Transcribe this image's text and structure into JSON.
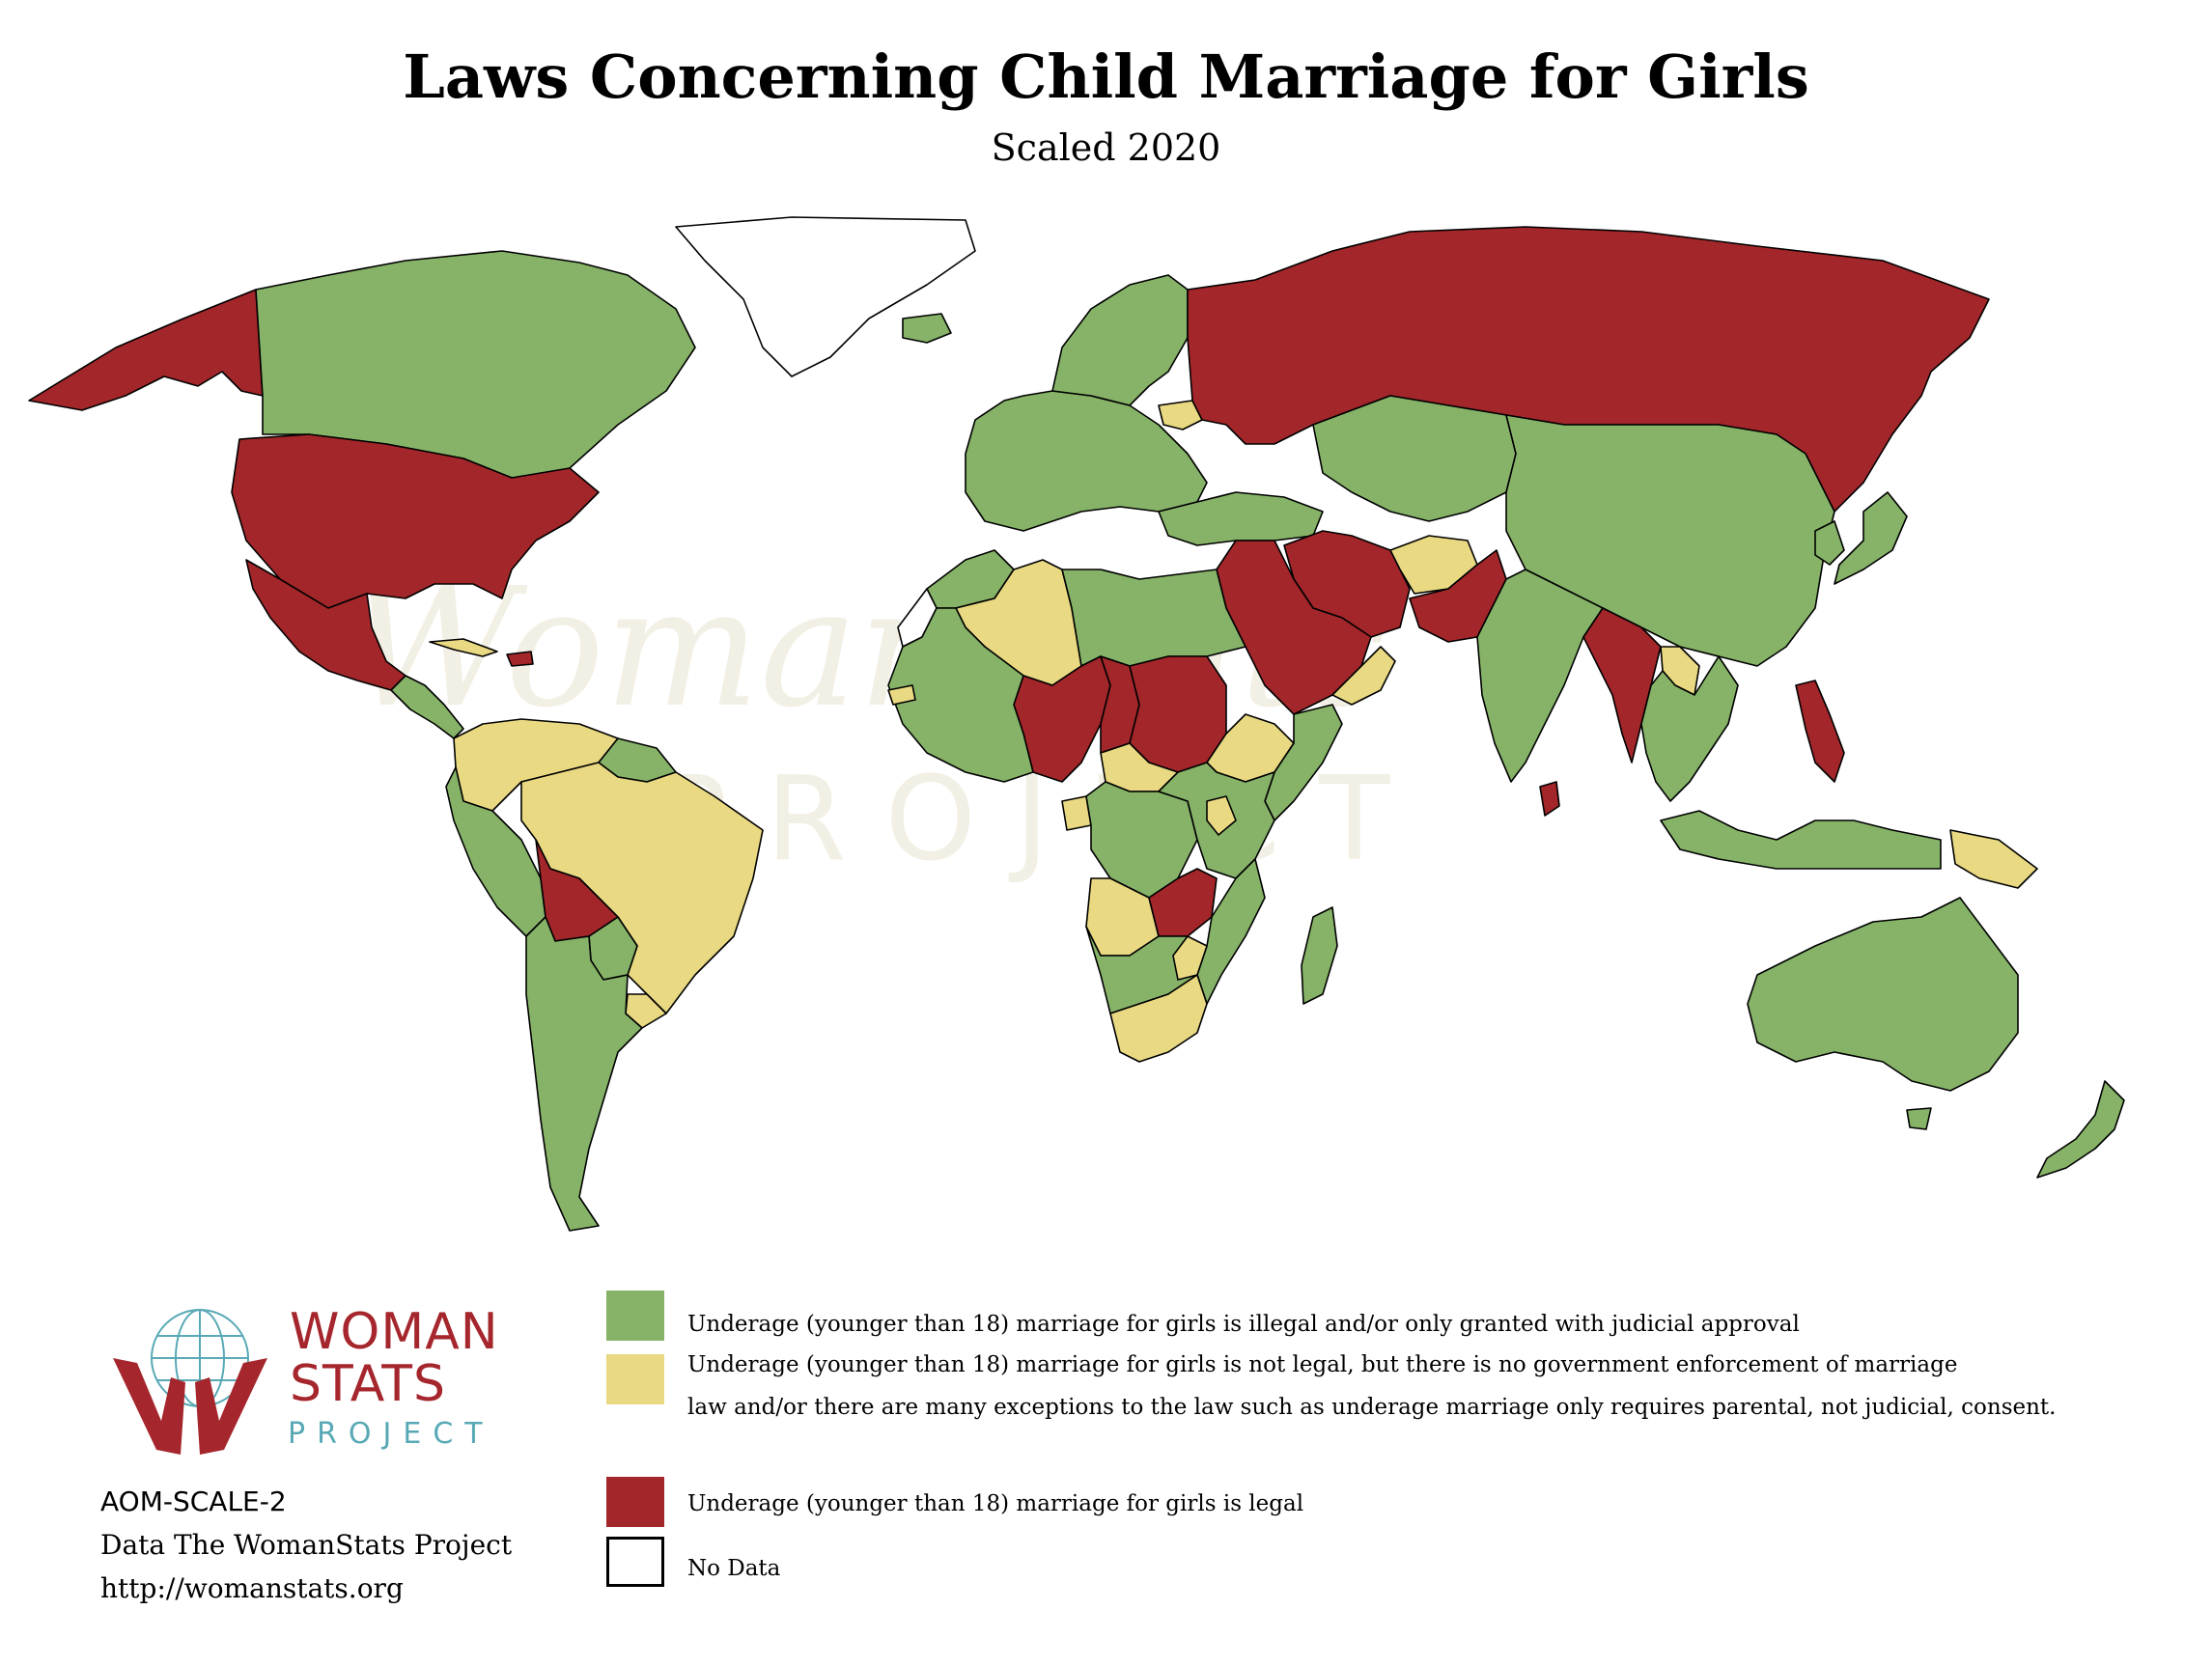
{
  "title": "Laws Concerning Child Marriage for Girls",
  "subtitle": "Scaled 2020",
  "colors": {
    "legal": "#a2262a",
    "not_enforced": "#e9d982",
    "illegal": "#86b368",
    "no_data": "#ffffff",
    "border": "#000000",
    "logo_red": "#a5262c",
    "logo_teal": "#58a9b5"
  },
  "watermark": {
    "line1": "WomanStats",
    "line2": "PROJECT"
  },
  "legend": [
    {
      "key": "illegal",
      "lines": [
        "Underage (younger than 18) marriage for girls is illegal and/or only granted with judicial approval"
      ]
    },
    {
      "key": "not_enforced",
      "lines": [
        "Underage (younger than 18) marriage for girls is not legal, but there is no government enforcement of marriage",
        "law and/or there are many exceptions to the law such as underage marriage only requires parental, not judicial, consent."
      ]
    },
    {
      "key": "legal",
      "lines": [
        "Underage (younger than 18) marriage for girls is legal"
      ]
    },
    {
      "key": "no_data",
      "lines": [
        "No Data"
      ]
    }
  ],
  "logo": {
    "word1": "WOMAN",
    "word2": "STATS",
    "word3": "PROJECT",
    "icon": "globe-hands-icon"
  },
  "credits": {
    "code": "AOM-SCALE-2",
    "source": "Data The WomanStats Project",
    "url": "http://womanstats.org"
  },
  "map_regions": [
    {
      "name": "alaska",
      "category": "legal"
    },
    {
      "name": "canada",
      "category": "illegal"
    },
    {
      "name": "greenland",
      "category": "no_data"
    },
    {
      "name": "iceland",
      "category": "illegal"
    },
    {
      "name": "united-states",
      "category": "legal"
    },
    {
      "name": "mexico",
      "category": "legal"
    },
    {
      "name": "central-america",
      "category": "illegal"
    },
    {
      "name": "cuba",
      "category": "not_enforced"
    },
    {
      "name": "haiti",
      "category": "legal"
    },
    {
      "name": "colombia-venezuela",
      "category": "not_enforced"
    },
    {
      "name": "guianas",
      "category": "illegal"
    },
    {
      "name": "ecuador-peru",
      "category": "illegal"
    },
    {
      "name": "brazil",
      "category": "not_enforced"
    },
    {
      "name": "bolivia",
      "category": "legal"
    },
    {
      "name": "paraguay",
      "category": "illegal"
    },
    {
      "name": "uruguay",
      "category": "not_enforced"
    },
    {
      "name": "chile-argentina",
      "category": "illegal"
    },
    {
      "name": "western-europe",
      "category": "illegal"
    },
    {
      "name": "scandinavia",
      "category": "illegal"
    },
    {
      "name": "belarus",
      "category": "not_enforced"
    },
    {
      "name": "russia",
      "category": "legal"
    },
    {
      "name": "central-asia",
      "category": "illegal"
    },
    {
      "name": "mongolia-china",
      "category": "illegal"
    },
    {
      "name": "japan",
      "category": "illegal"
    },
    {
      "name": "korea",
      "category": "illegal"
    },
    {
      "name": "turkey-caucasus",
      "category": "illegal"
    },
    {
      "name": "iran",
      "category": "legal"
    },
    {
      "name": "afghanistan",
      "category": "not_enforced"
    },
    {
      "name": "pakistan",
      "category": "legal"
    },
    {
      "name": "india",
      "category": "illegal"
    },
    {
      "name": "bangladesh-myanmar",
      "category": "legal"
    },
    {
      "name": "laos",
      "category": "not_enforced"
    },
    {
      "name": "southeast-asia",
      "category": "illegal"
    },
    {
      "name": "philippines",
      "category": "legal"
    },
    {
      "name": "indonesia",
      "category": "illegal"
    },
    {
      "name": "papua-new-guinea",
      "category": "not_enforced"
    },
    {
      "name": "arabia",
      "category": "legal"
    },
    {
      "name": "oman-yemen-coast",
      "category": "not_enforced"
    },
    {
      "name": "sri-lanka",
      "category": "legal"
    },
    {
      "name": "morocco-north",
      "category": "illegal"
    },
    {
      "name": "western-sahara",
      "category": "no_data"
    },
    {
      "name": "algeria",
      "category": "not_enforced"
    },
    {
      "name": "libya-egypt",
      "category": "illegal"
    },
    {
      "name": "niger-nigeria",
      "category": "legal"
    },
    {
      "name": "chad",
      "category": "legal"
    },
    {
      "name": "sudan",
      "category": "legal"
    },
    {
      "name": "ethiopia",
      "category": "not_enforced"
    },
    {
      "name": "somalia",
      "category": "illegal"
    },
    {
      "name": "west-africa",
      "category": "illegal"
    },
    {
      "name": "gambia",
      "category": "not_enforced"
    },
    {
      "name": "central-african-republic",
      "category": "not_enforced"
    },
    {
      "name": "gabon",
      "category": "not_enforced"
    },
    {
      "name": "drc",
      "category": "illegal"
    },
    {
      "name": "east-africa",
      "category": "illegal"
    },
    {
      "name": "tanzania-coast",
      "category": "not_enforced"
    },
    {
      "name": "angola",
      "category": "not_enforced"
    },
    {
      "name": "zambia-malawi",
      "category": "legal"
    },
    {
      "name": "mozambique",
      "category": "illegal"
    },
    {
      "name": "namibia-botswana",
      "category": "illegal"
    },
    {
      "name": "zimbabwe",
      "category": "not_enforced"
    },
    {
      "name": "south-africa",
      "category": "not_enforced"
    },
    {
      "name": "madagascar",
      "category": "illegal"
    },
    {
      "name": "australia",
      "category": "illegal"
    },
    {
      "name": "tasmania",
      "category": "illegal"
    },
    {
      "name": "new-zealand",
      "category": "illegal"
    }
  ]
}
